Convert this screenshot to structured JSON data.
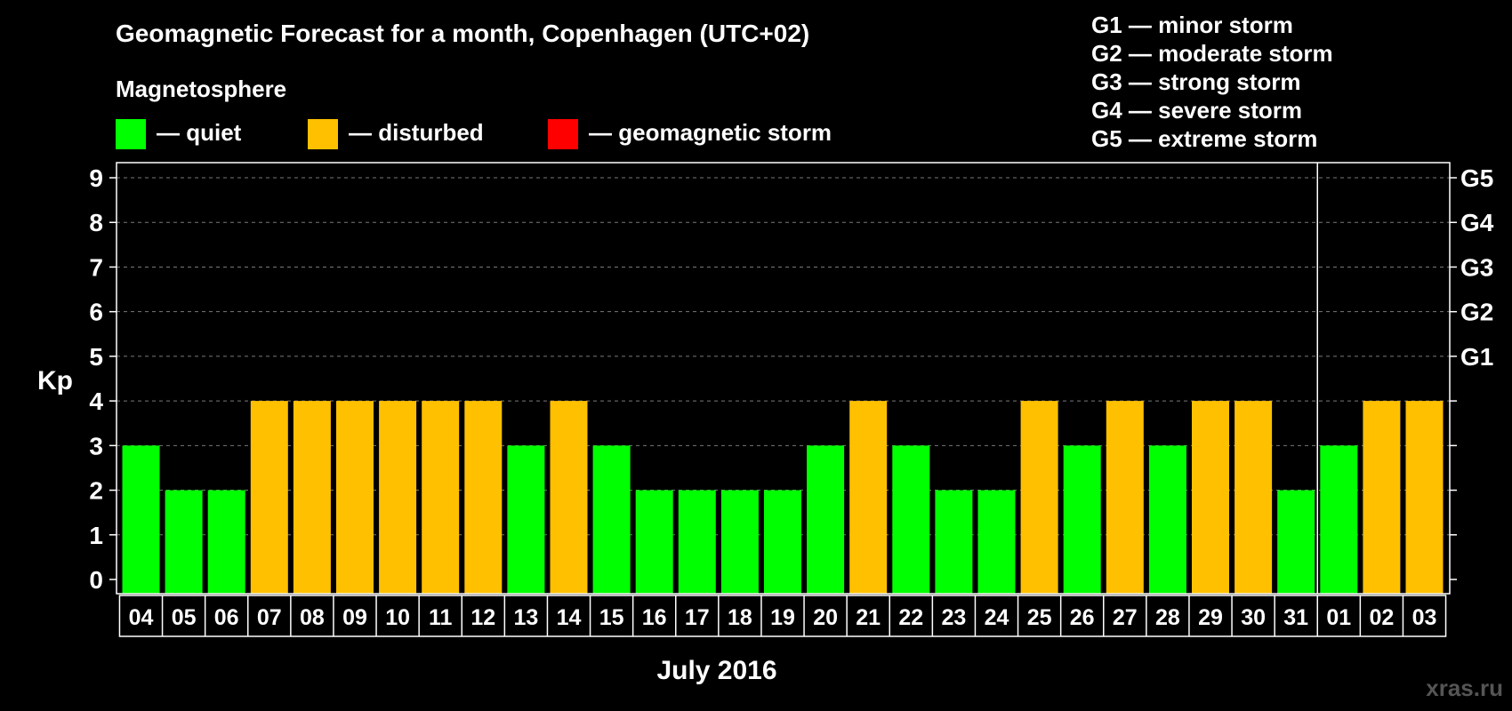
{
  "chart_data": {
    "type": "bar",
    "title": "Geomagnetic Forecast for a month, Copenhagen (UTC+02)",
    "legend_title": "Magnetosphere",
    "legend": [
      {
        "key": "quiet",
        "label": "— quiet",
        "color": "#00ff00"
      },
      {
        "key": "disturbed",
        "label": "— disturbed",
        "color": "#ffc000"
      },
      {
        "key": "storm",
        "label": "— geomagnetic storm",
        "color": "#ff0000"
      }
    ],
    "storm_scale": [
      "G1 — minor storm",
      "G2 — moderate storm",
      "G3 — strong storm",
      "G4 — severe storm",
      "G5 — extreme storm"
    ],
    "ylabel": "Kp",
    "xlabel": "July 2016",
    "ylim": [
      0,
      9
    ],
    "yticks": [
      0,
      1,
      2,
      3,
      4,
      5,
      6,
      7,
      8,
      9
    ],
    "right_labels": [
      {
        "value": 5,
        "label": "G1"
      },
      {
        "value": 6,
        "label": "G2"
      },
      {
        "value": 7,
        "label": "G3"
      },
      {
        "value": 8,
        "label": "G4"
      },
      {
        "value": 9,
        "label": "G5"
      }
    ],
    "month_separator_after": "31",
    "categories": [
      "04",
      "05",
      "06",
      "07",
      "08",
      "09",
      "10",
      "11",
      "12",
      "13",
      "14",
      "15",
      "16",
      "17",
      "18",
      "19",
      "20",
      "21",
      "22",
      "23",
      "24",
      "25",
      "26",
      "27",
      "28",
      "29",
      "30",
      "31",
      "01",
      "02",
      "03"
    ],
    "values": [
      3,
      2,
      2,
      4,
      4,
      4,
      4,
      4,
      4,
      3,
      4,
      3,
      2,
      2,
      2,
      2,
      3,
      4,
      3,
      2,
      2,
      4,
      3,
      4,
      3,
      4,
      4,
      2,
      3,
      4,
      4
    ],
    "status": [
      "quiet",
      "quiet",
      "quiet",
      "disturbed",
      "disturbed",
      "disturbed",
      "disturbed",
      "disturbed",
      "disturbed",
      "quiet",
      "disturbed",
      "quiet",
      "quiet",
      "quiet",
      "quiet",
      "quiet",
      "quiet",
      "disturbed",
      "quiet",
      "quiet",
      "quiet",
      "disturbed",
      "quiet",
      "disturbed",
      "quiet",
      "disturbed",
      "disturbed",
      "quiet",
      "quiet",
      "disturbed",
      "disturbed"
    ]
  },
  "watermark": "xras.ru"
}
